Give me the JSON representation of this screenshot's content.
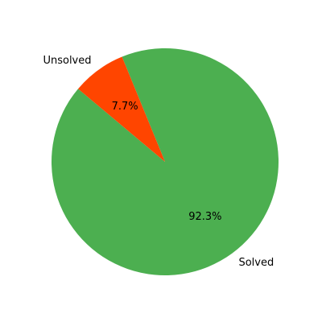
{
  "chart_data": {
    "type": "pie",
    "categories": [
      "Solved",
      "Unsolved"
    ],
    "values": [
      92.3,
      7.7
    ],
    "labels": [
      "Solved",
      "Unsolved"
    ],
    "autopct_labels": [
      "92.3%",
      "7.7%"
    ],
    "colors": [
      "#4caf50",
      "#ff4500"
    ],
    "title": "",
    "start_angle_deg": 140,
    "legend": "none"
  }
}
